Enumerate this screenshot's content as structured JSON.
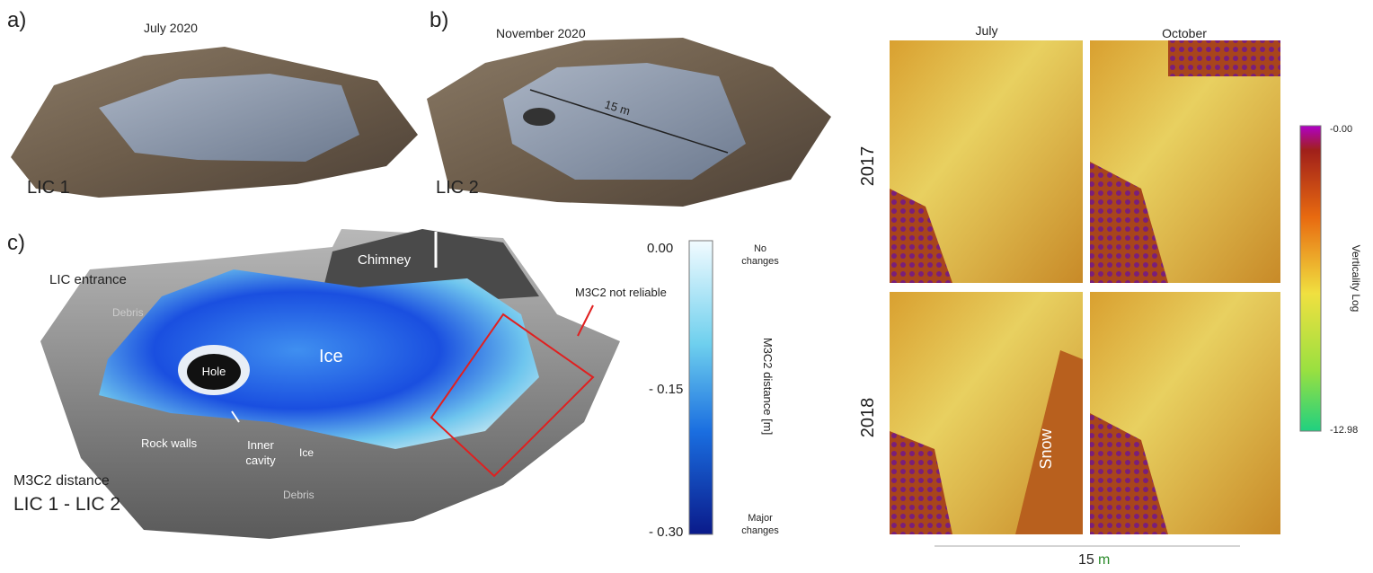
{
  "panel_a": {
    "label": "a)",
    "date": "July 2020",
    "name": "LIC 1"
  },
  "panel_b": {
    "label": "b)",
    "date": "November 2020",
    "name": "LIC 2",
    "scale": "15 m"
  },
  "panel_c": {
    "label": "c)",
    "annotations": {
      "chimney": "Chimney",
      "entrance": "LIC entrance",
      "debris_top": "Debris",
      "hole": "Hole",
      "ice_main": "Ice",
      "not_reliable": "M3C2 not reliable",
      "rock_walls": "Rock walls",
      "inner_cavity": [
        "Inner",
        "cavity"
      ],
      "ice_small": "Ice",
      "debris_bottom": "Debris"
    },
    "caption": [
      "M3C2 distance",
      "LIC 1 - LIC 2"
    ],
    "colorbar": {
      "title": "M3C2 distance [m]",
      "ticks": [
        "0.00",
        "- 0.15",
        "- 0.30"
      ],
      "top_note": [
        "No",
        "changes"
      ],
      "bottom_note": [
        "Major",
        "changes"
      ]
    }
  },
  "panel_d": {
    "columns": [
      "July",
      "October"
    ],
    "rows": [
      "2017",
      "2018"
    ],
    "snow": "Snow",
    "colorbar": {
      "title": "Verticality Log",
      "ticks": [
        "-0.00",
        "-12.98"
      ]
    },
    "scale": {
      "number": "15",
      "unit": "m"
    }
  }
}
